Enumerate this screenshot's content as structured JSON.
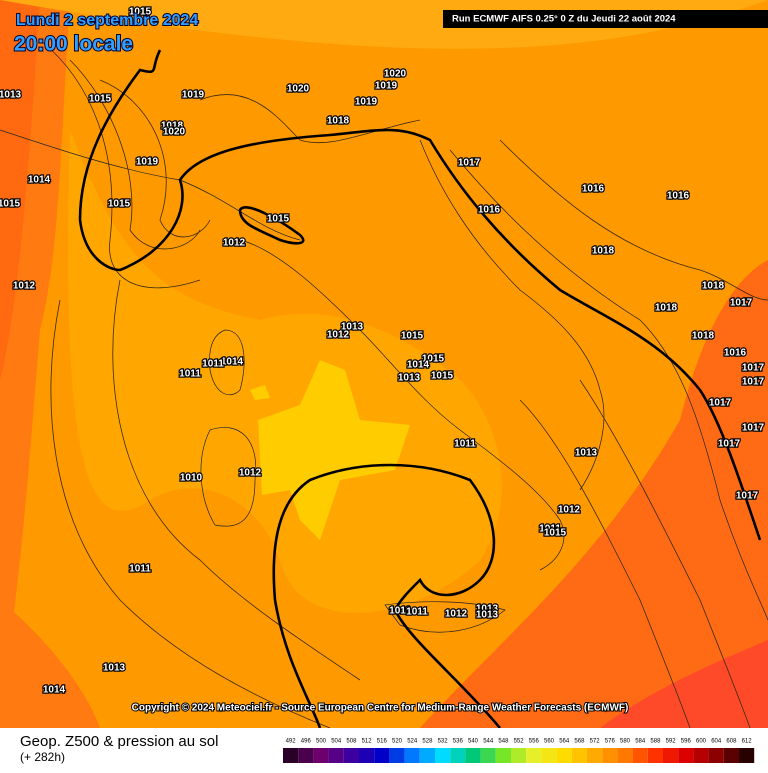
{
  "header": {
    "date": "Lundi 2 septembre 2024",
    "time": "20:00 locale",
    "run": "Run ECMWF AIFS 0.25° 0 Z du Jeudi 22 août 2024"
  },
  "isobar_labels": [
    "1015",
    "1013",
    "1015",
    "1019",
    "1018",
    "1020",
    "1019",
    "1014",
    "1015",
    "1015",
    "1020",
    "1020",
    "1019",
    "1019",
    "1018",
    "1017",
    "1016",
    "1016",
    "1016",
    "1015",
    "1012",
    "1018",
    "1018",
    "1017",
    "1012",
    "1018",
    "1018",
    "1013",
    "1012",
    "1015",
    "1016",
    "1015",
    "1014",
    "1017",
    "1017",
    "1014",
    "1011",
    "1011",
    "1015",
    "1013",
    "1017",
    "1017",
    "1011",
    "1017",
    "1013",
    "1012",
    "1010",
    "1012",
    "1011",
    "1015",
    "1017",
    "1011",
    "1011",
    "1011",
    "1012",
    "1013",
    "1013",
    "1013",
    "1014"
  ],
  "copyright": "Copyright © 2024 Meteociel.fr - Source European Centre for Medium-Range Weather Forecasts (ECMWF)",
  "footer": {
    "title": "Geop. Z500 & pression au sol",
    "lead": "(+ 282h)",
    "scale": [
      492,
      496,
      500,
      504,
      508,
      512,
      516,
      520,
      524,
      528,
      532,
      536,
      540,
      544,
      548,
      552,
      556,
      560,
      564,
      568,
      572,
      576,
      580,
      584,
      588,
      592,
      596,
      600,
      604,
      608,
      612
    ]
  }
}
